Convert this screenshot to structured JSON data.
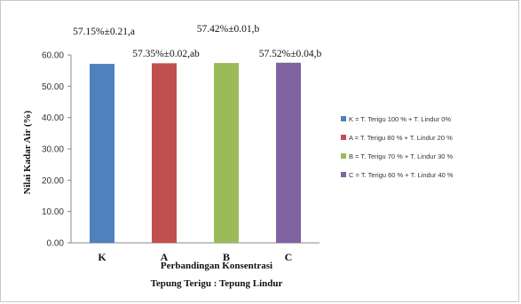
{
  "chart_data": {
    "type": "bar",
    "categories": [
      "K",
      "A",
      "B",
      "C"
    ],
    "values": [
      57.15,
      57.35,
      57.42,
      57.52
    ],
    "data_labels": [
      "57.15%±0.21,a",
      "57.35%±0.02,ab",
      "57.42%±0.01,b",
      "57.52%±0.04,b"
    ],
    "colors": [
      "#4f81bd",
      "#c0504d",
      "#9bbb59",
      "#8064a2"
    ],
    "ylabel": "Nilai Kadar Air (%)",
    "xlabel_lines": [
      "Perbandingan Konsentrasi",
      "Tepung Terigu : Tepung Lindur"
    ],
    "ylim": [
      0,
      60
    ],
    "yticks": [
      0,
      10,
      20,
      30,
      40,
      50,
      60
    ],
    "ytick_labels": [
      "0.00",
      "10.00",
      "20.00",
      "30.00",
      "40.00",
      "50.00",
      "60.00"
    ],
    "grid": false,
    "legend_position": "right",
    "legend": [
      "K = T. Terigu 100 % + T. Lindur 0%",
      "A = T. Terigu 80 % + T. Lindur 20 %",
      "B = T. Terigu 70 % + T. Lindur 30 %",
      "C = T. Terigu 60 % + T. Lindur 40 %"
    ]
  }
}
